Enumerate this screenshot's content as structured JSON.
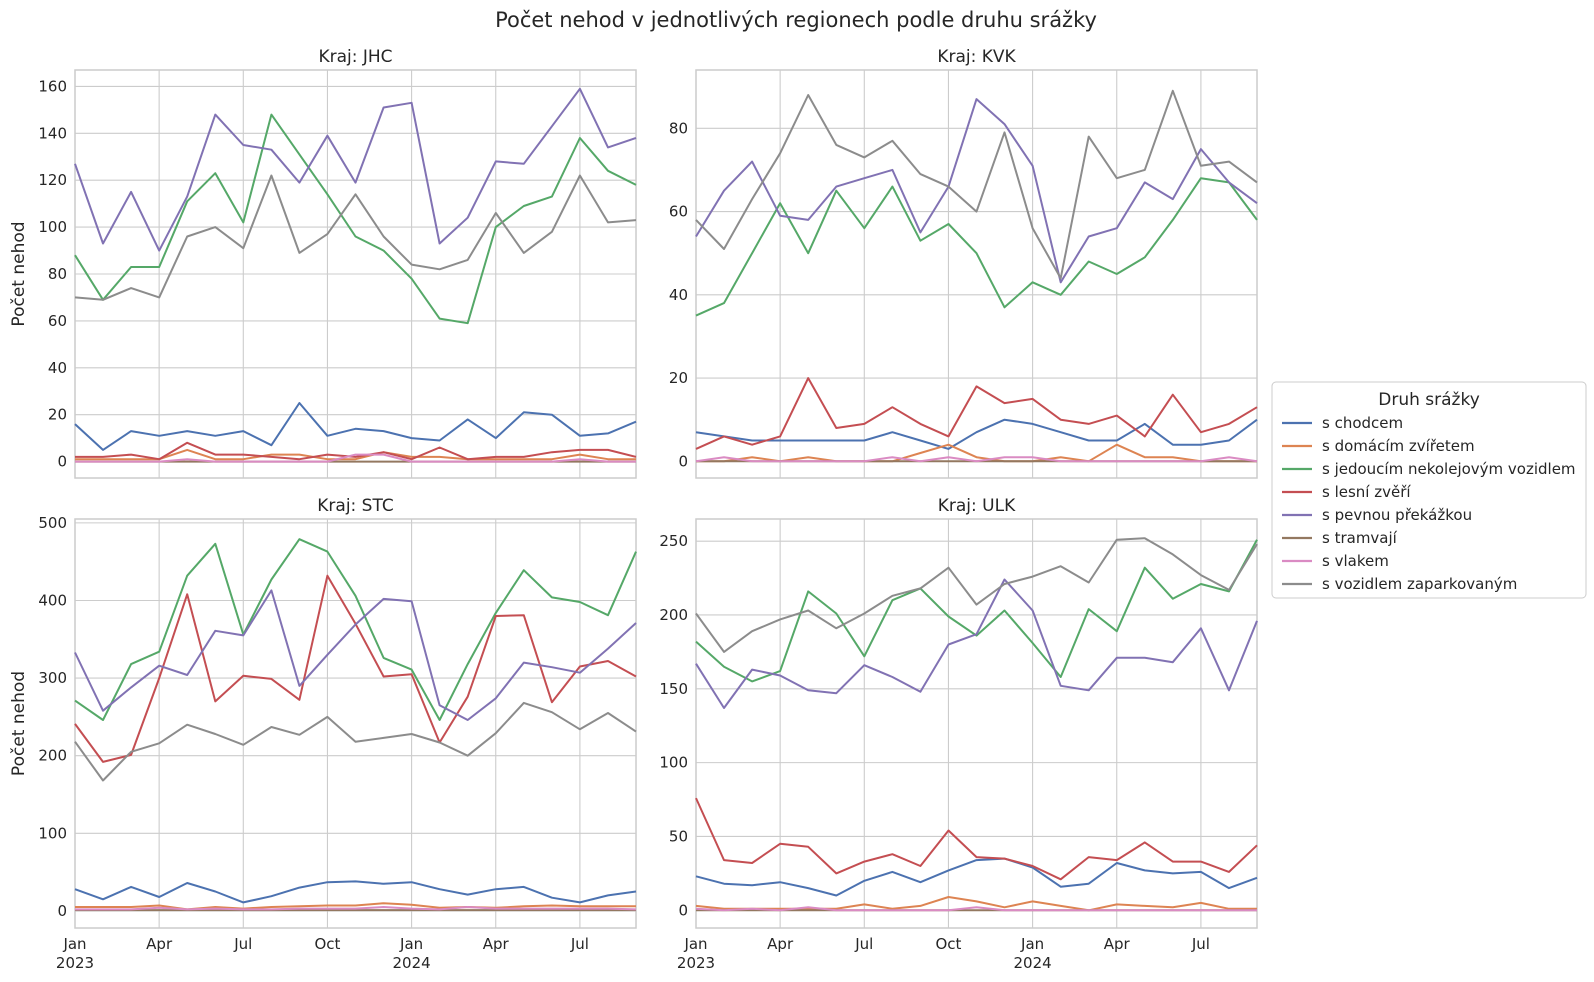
{
  "title": "Počet nehod v jednotlivých regionech podle druhu srážky",
  "legend": {
    "title": "Druh srážky",
    "placement": "right-center"
  },
  "colors": {
    "s chodcem": "#4c72b0",
    "s domácím zvířetem": "#dd8452",
    "s jedoucím nekolejovým vozidlem": "#55a868",
    "s lesní zvěří": "#c44e52",
    "s pevnou překážkou": "#8172b3",
    "s tramvají": "#937860",
    "s vlakem": "#da8bc3",
    "s vozidlem zaparkovaným": "#8c8c8c"
  },
  "chart_data": [
    {
      "type": "line",
      "title": "Kraj: JHC",
      "ylabel": "Počet nehod",
      "xlabel": "",
      "grid": true,
      "ylim": [
        -7,
        167
      ],
      "yticks": [
        0,
        20,
        40,
        60,
        80,
        100,
        120,
        140,
        160
      ],
      "x": [
        "2023-01",
        "2023-02",
        "2023-03",
        "2023-04",
        "2023-05",
        "2023-06",
        "2023-07",
        "2023-08",
        "2023-09",
        "2023-10",
        "2023-11",
        "2023-12",
        "2024-01",
        "2024-02",
        "2024-03",
        "2024-04",
        "2024-05",
        "2024-06",
        "2024-07",
        "2024-08",
        "2024-09"
      ],
      "xticks": [
        {
          "x": "2023-01",
          "label": "Jan",
          "label2": "2023"
        },
        {
          "x": "2023-04",
          "label": "Apr"
        },
        {
          "x": "2023-07",
          "label": "Jul"
        },
        {
          "x": "2023-10",
          "label": "Oct"
        },
        {
          "x": "2024-01",
          "label": "Jan",
          "label2": "2024"
        },
        {
          "x": "2024-04",
          "label": "Apr"
        },
        {
          "x": "2024-07",
          "label": "Jul"
        }
      ],
      "series": [
        {
          "name": "s chodcem",
          "values": [
            16,
            5,
            13,
            11,
            13,
            11,
            13,
            7,
            25,
            11,
            14,
            13,
            10,
            9,
            18,
            10,
            21,
            20,
            11,
            12,
            17
          ]
        },
        {
          "name": "s domácím zvířetem",
          "values": [
            1,
            1,
            1,
            1,
            5,
            1,
            1,
            3,
            3,
            1,
            1,
            4,
            2,
            2,
            1,
            1,
            1,
            1,
            3,
            1,
            1
          ]
        },
        {
          "name": "s jedoucím nekolejovým vozidlem",
          "values": [
            88,
            69,
            83,
            83,
            111,
            123,
            102,
            148,
            131,
            114,
            96,
            90,
            78,
            61,
            59,
            100,
            109,
            113,
            138,
            124,
            118
          ]
        },
        {
          "name": "s lesní zvěří",
          "values": [
            2,
            2,
            3,
            1,
            8,
            3,
            3,
            2,
            1,
            3,
            2,
            4,
            1,
            6,
            1,
            2,
            2,
            4,
            5,
            5,
            2
          ]
        },
        {
          "name": "s pevnou překážkou",
          "values": [
            127,
            93,
            115,
            90,
            113,
            148,
            135,
            133,
            119,
            139,
            119,
            151,
            153,
            93,
            104,
            128,
            127,
            143,
            159,
            134,
            138
          ]
        },
        {
          "name": "s tramvají",
          "values": [
            0,
            0,
            0,
            0,
            0,
            0,
            0,
            0,
            0,
            0,
            0,
            0,
            0,
            0,
            0,
            0,
            0,
            0,
            0,
            0,
            0
          ]
        },
        {
          "name": "s vlakem",
          "values": [
            0,
            0,
            0,
            0,
            1,
            0,
            0,
            0,
            0,
            0,
            3,
            3,
            0,
            0,
            0,
            0,
            0,
            0,
            1,
            0,
            0
          ]
        },
        {
          "name": "s vozidlem zaparkovaným",
          "values": [
            70,
            69,
            74,
            70,
            96,
            100,
            91,
            122,
            89,
            97,
            114,
            96,
            84,
            82,
            86,
            106,
            89,
            98,
            122,
            102,
            103
          ]
        }
      ]
    },
    {
      "type": "line",
      "title": "Kraj: KVK",
      "ylabel": "",
      "xlabel": "",
      "grid": true,
      "ylim": [
        -4,
        94
      ],
      "yticks": [
        0,
        20,
        40,
        60,
        80
      ],
      "x": [
        "2023-01",
        "2023-02",
        "2023-03",
        "2023-04",
        "2023-05",
        "2023-06",
        "2023-07",
        "2023-08",
        "2023-09",
        "2023-10",
        "2023-11",
        "2023-12",
        "2024-01",
        "2024-02",
        "2024-03",
        "2024-04",
        "2024-05",
        "2024-06",
        "2024-07",
        "2024-08",
        "2024-09"
      ],
      "xticks": [
        {
          "x": "2023-01",
          "label": "Jan",
          "label2": "2023"
        },
        {
          "x": "2023-04",
          "label": "Apr"
        },
        {
          "x": "2023-07",
          "label": "Jul"
        },
        {
          "x": "2023-10",
          "label": "Oct"
        },
        {
          "x": "2024-01",
          "label": "Jan",
          "label2": "2024"
        },
        {
          "x": "2024-04",
          "label": "Apr"
        },
        {
          "x": "2024-07",
          "label": "Jul"
        }
      ],
      "series": [
        {
          "name": "s chodcem",
          "values": [
            7,
            6,
            5,
            5,
            5,
            5,
            5,
            7,
            5,
            3,
            7,
            10,
            9,
            7,
            5,
            5,
            9,
            4,
            4,
            5,
            10
          ]
        },
        {
          "name": "s domácím zvířetem",
          "values": [
            0,
            0,
            1,
            0,
            1,
            0,
            0,
            0,
            2,
            4,
            1,
            0,
            0,
            1,
            0,
            4,
            1,
            1,
            0,
            0,
            0
          ]
        },
        {
          "name": "s jedoucím nekolejovým vozidlem",
          "values": [
            35,
            38,
            50,
            62,
            50,
            65,
            56,
            66,
            53,
            57,
            50,
            37,
            43,
            40,
            48,
            45,
            49,
            58,
            68,
            67,
            58
          ]
        },
        {
          "name": "s lesní zvěří",
          "values": [
            3,
            6,
            4,
            6,
            20,
            8,
            9,
            13,
            9,
            6,
            18,
            14,
            15,
            10,
            9,
            11,
            6,
            16,
            7,
            9,
            13
          ]
        },
        {
          "name": "s pevnou překážkou",
          "values": [
            54,
            65,
            72,
            59,
            58,
            66,
            68,
            70,
            55,
            66,
            87,
            81,
            71,
            43,
            54,
            56,
            67,
            63,
            75,
            67,
            62
          ]
        },
        {
          "name": "s tramvají",
          "values": [
            0,
            0,
            0,
            0,
            0,
            0,
            0,
            0,
            0,
            0,
            0,
            0,
            0,
            0,
            0,
            0,
            0,
            0,
            0,
            0,
            0
          ]
        },
        {
          "name": "s vlakem",
          "values": [
            0,
            1,
            0,
            0,
            0,
            0,
            0,
            1,
            0,
            1,
            0,
            1,
            1,
            0,
            0,
            0,
            0,
            0,
            0,
            1,
            0
          ]
        },
        {
          "name": "s vozidlem zaparkovaným",
          "values": [
            58,
            51,
            63,
            74,
            88,
            76,
            73,
            77,
            69,
            66,
            60,
            79,
            56,
            44,
            78,
            68,
            70,
            89,
            71,
            72,
            67
          ]
        }
      ]
    },
    {
      "type": "line",
      "title": "Kraj: STC",
      "ylabel": "Počet nehod",
      "xlabel": "",
      "grid": true,
      "ylim": [
        -22,
        505
      ],
      "yticks": [
        0,
        100,
        200,
        300,
        400,
        500
      ],
      "x": [
        "2023-01",
        "2023-02",
        "2023-03",
        "2023-04",
        "2023-05",
        "2023-06",
        "2023-07",
        "2023-08",
        "2023-09",
        "2023-10",
        "2023-11",
        "2023-12",
        "2024-01",
        "2024-02",
        "2024-03",
        "2024-04",
        "2024-05",
        "2024-06",
        "2024-07",
        "2024-08",
        "2024-09"
      ],
      "xticks": [
        {
          "x": "2023-01",
          "label": "Jan",
          "label2": "2023"
        },
        {
          "x": "2023-04",
          "label": "Apr"
        },
        {
          "x": "2023-07",
          "label": "Jul"
        },
        {
          "x": "2023-10",
          "label": "Oct"
        },
        {
          "x": "2024-01",
          "label": "Jan",
          "label2": "2024"
        },
        {
          "x": "2024-04",
          "label": "Apr"
        },
        {
          "x": "2024-07",
          "label": "Jul"
        }
      ],
      "series": [
        {
          "name": "s chodcem",
          "values": [
            28,
            15,
            31,
            18,
            36,
            25,
            11,
            19,
            30,
            37,
            38,
            35,
            37,
            28,
            21,
            28,
            31,
            17,
            11,
            20,
            25
          ]
        },
        {
          "name": "s domácím zvířetem",
          "values": [
            5,
            5,
            5,
            7,
            2,
            5,
            3,
            5,
            6,
            7,
            7,
            10,
            8,
            4,
            5,
            4,
            6,
            7,
            6,
            6,
            6
          ]
        },
        {
          "name": "s jedoucím nekolejovým vozidlem",
          "values": [
            271,
            246,
            318,
            334,
            432,
            473,
            356,
            427,
            479,
            463,
            406,
            326,
            311,
            246,
            318,
            384,
            439,
            404,
            398,
            381,
            463
          ]
        },
        {
          "name": "s lesní zvěří",
          "values": [
            241,
            192,
            201,
            300,
            408,
            270,
            303,
            299,
            272,
            432,
            370,
            302,
            305,
            217,
            276,
            380,
            381,
            269,
            315,
            322,
            302
          ]
        },
        {
          "name": "s pevnou překážkou",
          "values": [
            333,
            258,
            288,
            316,
            304,
            361,
            355,
            413,
            290,
            330,
            369,
            402,
            399,
            265,
            246,
            274,
            320,
            314,
            307,
            338,
            371
          ]
        },
        {
          "name": "s tramvají",
          "values": [
            1,
            1,
            1,
            1,
            1,
            1,
            1,
            1,
            1,
            1,
            1,
            1,
            1,
            1,
            1,
            1,
            1,
            1,
            1,
            1,
            1
          ]
        },
        {
          "name": "s vlakem",
          "values": [
            2,
            2,
            2,
            4,
            2,
            3,
            2,
            2,
            3,
            3,
            3,
            5,
            3,
            2,
            5,
            3,
            3,
            3,
            3,
            3,
            2
          ]
        },
        {
          "name": "s vozidlem zaparkovaným",
          "values": [
            218,
            168,
            205,
            216,
            240,
            228,
            214,
            237,
            227,
            250,
            218,
            223,
            228,
            217,
            200,
            229,
            268,
            256,
            234,
            255,
            231
          ]
        }
      ]
    },
    {
      "type": "line",
      "title": "Kraj: ULK",
      "ylabel": "",
      "xlabel": "",
      "grid": true,
      "ylim": [
        -12,
        265
      ],
      "yticks": [
        0,
        50,
        100,
        150,
        200,
        250
      ],
      "x": [
        "2023-01",
        "2023-02",
        "2023-03",
        "2023-04",
        "2023-05",
        "2023-06",
        "2023-07",
        "2023-08",
        "2023-09",
        "2023-10",
        "2023-11",
        "2023-12",
        "2024-01",
        "2024-02",
        "2024-03",
        "2024-04",
        "2024-05",
        "2024-06",
        "2024-07",
        "2024-08",
        "2024-09"
      ],
      "xticks": [
        {
          "x": "2023-01",
          "label": "Jan",
          "label2": "2023"
        },
        {
          "x": "2023-04",
          "label": "Apr"
        },
        {
          "x": "2023-07",
          "label": "Jul"
        },
        {
          "x": "2023-10",
          "label": "Oct"
        },
        {
          "x": "2024-01",
          "label": "Jan",
          "label2": "2024"
        },
        {
          "x": "2024-04",
          "label": "Apr"
        },
        {
          "x": "2024-07",
          "label": "Jul"
        }
      ],
      "series": [
        {
          "name": "s chodcem",
          "values": [
            23,
            18,
            17,
            19,
            15,
            10,
            20,
            26,
            19,
            27,
            34,
            35,
            29,
            16,
            18,
            32,
            27,
            25,
            26,
            15,
            22
          ]
        },
        {
          "name": "s domácím zvířetem",
          "values": [
            3,
            1,
            1,
            1,
            1,
            1,
            4,
            1,
            3,
            9,
            6,
            2,
            6,
            3,
            0,
            4,
            3,
            2,
            5,
            1,
            1
          ]
        },
        {
          "name": "s jedoucím nekolejovým vozidlem",
          "values": [
            182,
            165,
            155,
            162,
            216,
            201,
            172,
            210,
            218,
            199,
            186,
            203,
            181,
            158,
            204,
            189,
            232,
            211,
            221,
            216,
            251
          ]
        },
        {
          "name": "s lesní zvěří",
          "values": [
            76,
            34,
            32,
            45,
            43,
            25,
            33,
            38,
            30,
            54,
            36,
            35,
            30,
            21,
            36,
            34,
            46,
            33,
            33,
            26,
            44
          ]
        },
        {
          "name": "s pevnou překážkou",
          "values": [
            167,
            137,
            163,
            159,
            149,
            147,
            166,
            158,
            148,
            180,
            187,
            224,
            203,
            152,
            149,
            171,
            171,
            168,
            191,
            149,
            196
          ]
        },
        {
          "name": "s tramvají",
          "values": [
            0,
            0,
            0,
            0,
            0,
            0,
            0,
            0,
            0,
            0,
            0,
            0,
            0,
            0,
            0,
            0,
            0,
            0,
            0,
            0,
            0
          ]
        },
        {
          "name": "s vlakem",
          "values": [
            1,
            0,
            1,
            0,
            2,
            0,
            0,
            0,
            0,
            0,
            2,
            0,
            0,
            0,
            0,
            0,
            0,
            0,
            0,
            0,
            0
          ]
        },
        {
          "name": "s vozidlem zaparkovaným",
          "values": [
            201,
            175,
            189,
            197,
            203,
            191,
            201,
            213,
            218,
            232,
            207,
            221,
            226,
            233,
            222,
            251,
            252,
            241,
            227,
            217,
            248
          ]
        }
      ]
    }
  ]
}
